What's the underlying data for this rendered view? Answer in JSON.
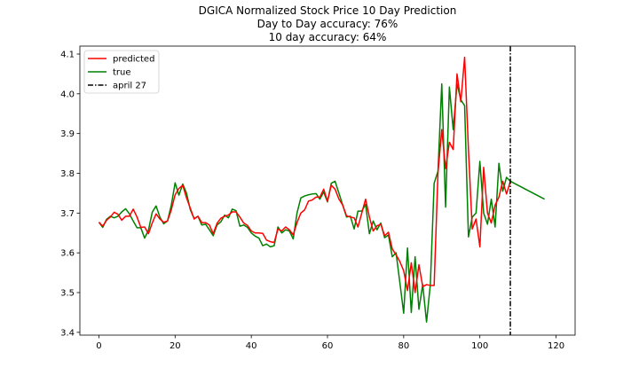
{
  "chart_data": {
    "type": "line",
    "title": "DGICA Normalized Stock Price 10 Day Prediction",
    "subtitle_lines": [
      "Day to Day accuracy: 76%",
      "10 day accuracy: 64%"
    ],
    "xlabel": "",
    "ylabel": "",
    "xlim": [
      -5,
      125
    ],
    "ylim": [
      3.393,
      4.12
    ],
    "x_ticks": [
      0,
      20,
      40,
      60,
      80,
      100,
      120
    ],
    "y_ticks": [
      3.4,
      3.5,
      3.6,
      3.7,
      3.8,
      3.9,
      4.0,
      4.1
    ],
    "grid": false,
    "legend_position": "upper-left",
    "series": [
      {
        "name": "predicted",
        "color": "#ff0000",
        "x_start": 0,
        "values": [
          3.677,
          3.667,
          3.682,
          3.69,
          3.702,
          3.697,
          3.682,
          3.692,
          3.692,
          3.71,
          3.69,
          3.664,
          3.665,
          3.648,
          3.675,
          3.698,
          3.685,
          3.677,
          3.68,
          3.708,
          3.746,
          3.762,
          3.77,
          3.738,
          3.712,
          3.685,
          3.692,
          3.676,
          3.676,
          3.67,
          3.648,
          3.674,
          3.687,
          3.692,
          3.695,
          3.703,
          3.703,
          3.69,
          3.675,
          3.669,
          3.655,
          3.65,
          3.65,
          3.649,
          3.632,
          3.628,
          3.626,
          3.66,
          3.655,
          3.665,
          3.658,
          3.645,
          3.676,
          3.7,
          3.708,
          3.73,
          3.733,
          3.74,
          3.74,
          3.76,
          3.73,
          3.77,
          3.76,
          3.735,
          3.72,
          3.693,
          3.69,
          3.688,
          3.665,
          3.7,
          3.735,
          3.69,
          3.655,
          3.668,
          3.672,
          3.643,
          3.652,
          3.61,
          3.595,
          3.578,
          3.555,
          3.505,
          3.575,
          3.5,
          3.57,
          3.515,
          3.52,
          3.518,
          3.518,
          3.8,
          3.91,
          3.812,
          3.878,
          3.86,
          4.05,
          3.98,
          4.092,
          3.86,
          3.66,
          3.685,
          3.615,
          3.815,
          3.7,
          3.675,
          3.72,
          3.74,
          3.78,
          3.748,
          3.78
        ]
      },
      {
        "name": "true",
        "color": "#008000",
        "x_start": 0,
        "values": [
          3.677,
          3.664,
          3.684,
          3.692,
          3.688,
          3.692,
          3.703,
          3.711,
          3.698,
          3.68,
          3.663,
          3.663,
          3.637,
          3.657,
          3.702,
          3.718,
          3.69,
          3.673,
          3.68,
          3.72,
          3.776,
          3.745,
          3.773,
          3.75,
          3.708,
          3.686,
          3.692,
          3.67,
          3.672,
          3.658,
          3.643,
          3.67,
          3.678,
          3.695,
          3.688,
          3.71,
          3.706,
          3.667,
          3.67,
          3.664,
          3.65,
          3.642,
          3.637,
          3.618,
          3.622,
          3.615,
          3.618,
          3.665,
          3.65,
          3.658,
          3.655,
          3.635,
          3.7,
          3.738,
          3.743,
          3.746,
          3.748,
          3.749,
          3.735,
          3.753,
          3.728,
          3.775,
          3.78,
          3.75,
          3.72,
          3.69,
          3.692,
          3.66,
          3.705,
          3.705,
          3.722,
          3.648,
          3.68,
          3.658,
          3.675,
          3.638,
          3.645,
          3.59,
          3.6,
          3.525,
          3.448,
          3.612,
          3.45,
          3.59,
          3.458,
          3.52,
          3.426,
          3.52,
          3.775,
          3.805,
          4.025,
          3.715,
          4.017,
          3.91,
          4.025,
          3.985,
          3.97,
          3.64,
          3.69,
          3.7,
          3.83,
          3.7,
          3.672,
          3.735,
          3.665,
          3.825,
          3.755,
          3.79,
          3.78,
          3.775,
          3.77,
          3.765,
          3.76,
          3.755,
          3.75,
          3.745,
          3.74,
          3.735
        ]
      }
    ],
    "vline": {
      "name": "april 27",
      "x": 108,
      "color": "#000000",
      "style": "dash-dot"
    }
  }
}
